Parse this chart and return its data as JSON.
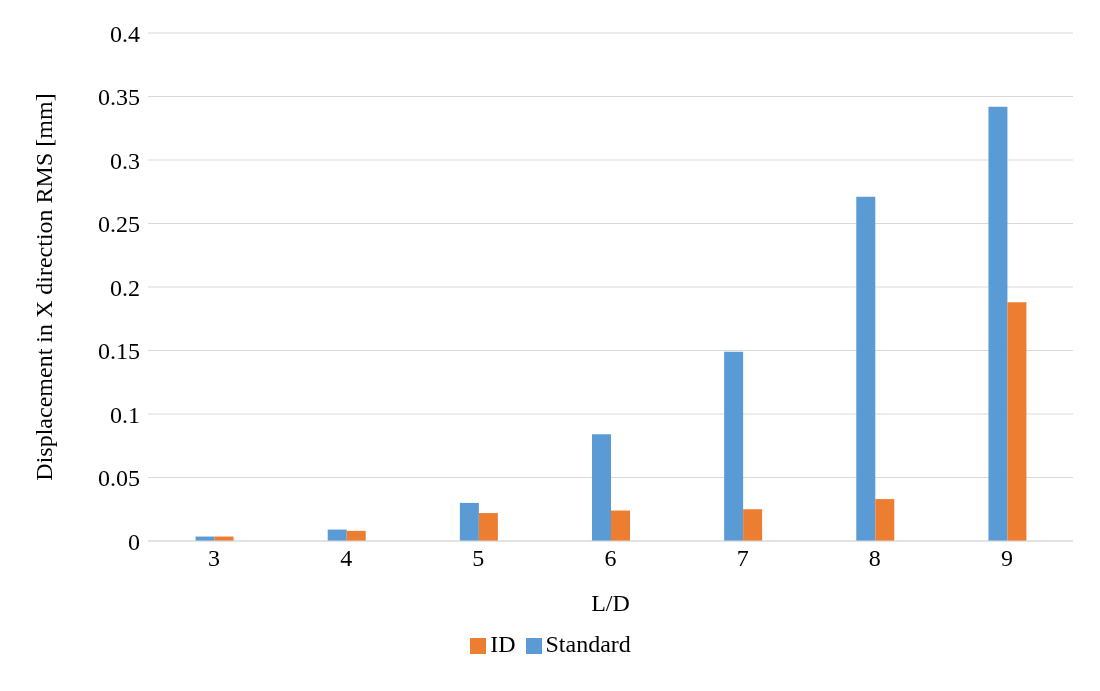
{
  "chart_data": {
    "type": "bar",
    "xlabel": "L/D",
    "ylabel": "Displacement in X direction RMS [mm]",
    "categories": [
      "3",
      "4",
      "5",
      "6",
      "7",
      "8",
      "9"
    ],
    "series": [
      {
        "name": "Standard",
        "color": "#5b9bd5",
        "values": [
          0.0035,
          0.009,
          0.03,
          0.084,
          0.149,
          0.271,
          0.342
        ]
      },
      {
        "name": "ID",
        "color": "#ed7d31",
        "values": [
          0.0035,
          0.008,
          0.022,
          0.024,
          0.025,
          0.033,
          0.188
        ]
      }
    ],
    "ylim": [
      0,
      0.4
    ],
    "yticks": [
      0,
      0.05,
      0.1,
      0.15,
      0.2,
      0.25,
      0.3,
      0.35,
      0.4
    ],
    "grid": "y",
    "legend": "bottom"
  }
}
